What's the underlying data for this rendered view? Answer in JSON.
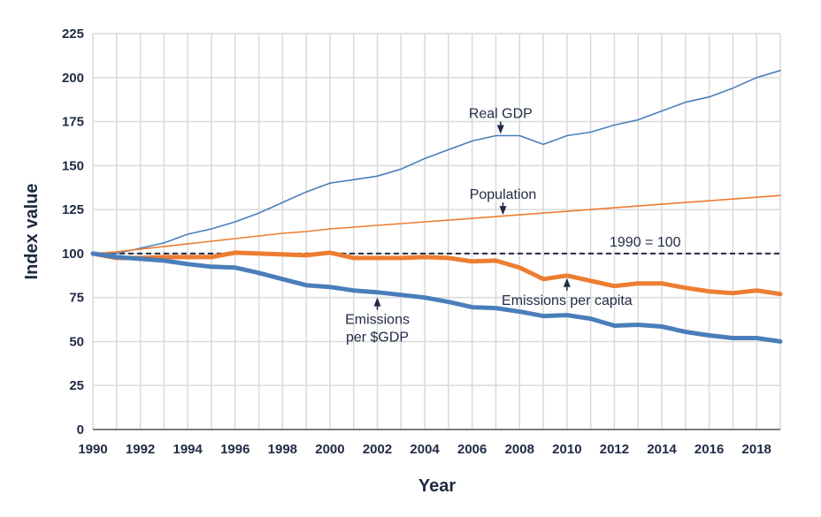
{
  "chart_data": {
    "type": "line",
    "title": "",
    "xlabel": "Year",
    "ylabel": "Index value",
    "xlim": [
      1990,
      2019
    ],
    "ylim": [
      0,
      225
    ],
    "yticks": [
      0,
      25,
      50,
      75,
      100,
      125,
      150,
      175,
      200,
      225
    ],
    "xticks": [
      1990,
      1992,
      1994,
      1996,
      1998,
      2000,
      2002,
      2004,
      2006,
      2008,
      2010,
      2012,
      2014,
      2016,
      2018
    ],
    "grid": true,
    "x": [
      1990,
      1991,
      1992,
      1993,
      1994,
      1995,
      1996,
      1997,
      1998,
      1999,
      2000,
      2001,
      2002,
      2003,
      2004,
      2005,
      2006,
      2007,
      2008,
      2009,
      2010,
      2011,
      2012,
      2013,
      2014,
      2015,
      2016,
      2017,
      2018,
      2019
    ],
    "series": [
      {
        "name": "Real GDP",
        "color": "#4a7ebb",
        "width": "thin",
        "values": [
          100,
          100,
          103,
          106,
          111,
          114,
          118,
          123,
          129,
          135,
          140,
          142,
          144,
          148,
          154,
          159,
          164,
          167,
          167,
          162,
          167,
          169,
          173,
          176,
          181,
          186,
          189,
          194,
          200,
          204
        ]
      },
      {
        "name": "Population",
        "color": "#ed7d31",
        "width": "thin",
        "values": [
          100,
          101,
          102.5,
          104,
          105.5,
          107,
          108.5,
          110,
          111.5,
          112.5,
          114,
          115,
          116,
          117,
          118,
          119,
          120,
          121,
          122,
          123,
          124,
          125,
          126,
          127,
          128,
          129,
          130,
          131,
          132,
          133
        ]
      },
      {
        "name": "Emissions per capita",
        "color": "#ed7d31",
        "width": "thick",
        "values": [
          100,
          97.5,
          97.5,
          98,
          98,
          98,
          100.5,
          100,
          99.5,
          99,
          100.5,
          97.5,
          97.5,
          97.5,
          98,
          97.5,
          95.5,
          96,
          92,
          85.5,
          87.5,
          84.5,
          81.5,
          83,
          83,
          80.5,
          78.5,
          77.5,
          79,
          77
        ]
      },
      {
        "name": "Emissions per $GDP",
        "color": "#4a7ebb",
        "width": "thick",
        "values": [
          100,
          98,
          97,
          96,
          94,
          92.5,
          92,
          89,
          85.5,
          82,
          81,
          79,
          78,
          76.5,
          75,
          72.5,
          69.5,
          69,
          67,
          64.5,
          65,
          63,
          59,
          59.5,
          58.5,
          55.5,
          53.5,
          52,
          52,
          50
        ]
      }
    ],
    "reference_line": {
      "label": "1990 = 100",
      "value": 100,
      "style": "dashed",
      "color": "#1f2a44"
    },
    "annotations": [
      {
        "text": "Real GDP",
        "lines": [
          "Real GDP"
        ],
        "arrow": "down",
        "x": 2007.2,
        "y": 168
      },
      {
        "text": "Population",
        "lines": [
          "Population"
        ],
        "arrow": "down",
        "x": 2007.3,
        "y": 122
      },
      {
        "text": "1990 = 100",
        "lines": [
          "1990 = 100"
        ],
        "arrow": "none",
        "x": 2013.3,
        "y": 101
      },
      {
        "text": "Emissions per capita",
        "lines": [
          "Emissions per capita"
        ],
        "arrow": "up",
        "x": 2010.0,
        "y": 86
      },
      {
        "text": "Emissions per $GDP",
        "lines": [
          "Emissions",
          "per $GDP"
        ],
        "arrow": "up",
        "x": 2002.0,
        "y": 75
      }
    ]
  }
}
